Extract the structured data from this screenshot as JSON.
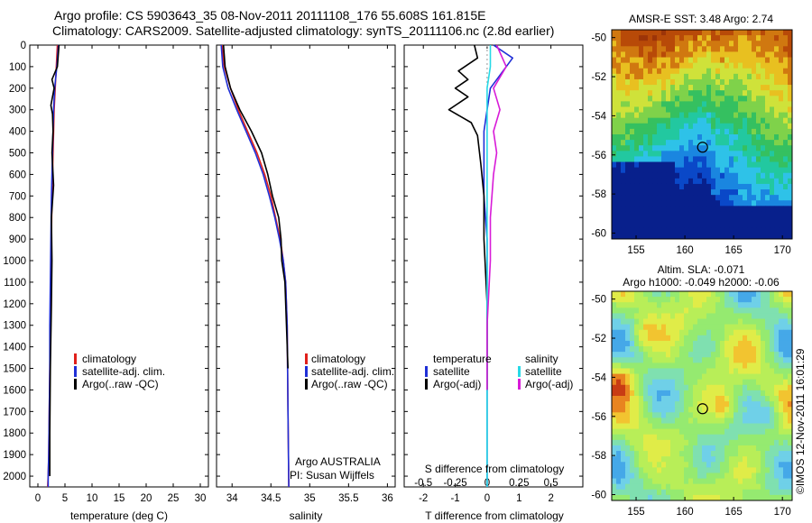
{
  "header": {
    "line1": "Argo profile: CS 5903643_35 08-Nov-2011 20111108_176 55.608S 161.815E",
    "line2": "Climatology: CARS2009. Satellite-adjusted climatology: synTS_20111106.nc (2.8d earlier)"
  },
  "colors": {
    "climatology": "#e0201b",
    "satellite": "#1f2fd6",
    "argo": "#000000",
    "satellite_diff": "#27d9e6",
    "argo_diff": "#d81bd8"
  },
  "chart_data": [
    {
      "type": "line",
      "id": "temperature",
      "xlabel": "temperature (deg C)",
      "ylabel": "",
      "xlim": [
        -1.5,
        31.5
      ],
      "ylim": [
        2050,
        0
      ],
      "xticks": [
        0,
        5,
        10,
        15,
        20,
        25,
        30
      ],
      "yticks": [
        0,
        100,
        200,
        300,
        400,
        500,
        600,
        700,
        800,
        900,
        1000,
        1100,
        1200,
        1300,
        1400,
        1500,
        1600,
        1700,
        1800,
        1900,
        2000
      ],
      "series": [
        {
          "name": "climatology",
          "color": "#e0201b",
          "x": [
            3.6,
            3.4,
            3.2,
            3.0,
            2.9,
            2.8,
            2.6,
            2.5,
            2.4,
            2.3,
            2.2,
            2.1,
            2.0,
            1.9,
            1.8
          ],
          "y": [
            0,
            100,
            200,
            300,
            400,
            500,
            700,
            900,
            1100,
            1300,
            1500,
            1700,
            1900,
            2000,
            2050
          ]
        },
        {
          "name": "satellite-adj. clim.",
          "color": "#1f2fd6",
          "x": [
            3.8,
            3.5,
            3.1,
            2.9,
            2.8,
            2.7,
            2.5,
            2.4,
            2.3,
            2.2,
            2.2,
            2.1,
            2.0,
            1.9,
            1.9
          ],
          "y": [
            0,
            100,
            200,
            300,
            400,
            500,
            700,
            900,
            1100,
            1300,
            1500,
            1700,
            1900,
            2000,
            2050
          ]
        },
        {
          "name": "Argo(..raw -QC)",
          "color": "#000000",
          "x": [
            3.9,
            3.6,
            2.6,
            3.0,
            2.4,
            2.7,
            2.8,
            2.6,
            2.9,
            2.5,
            2.6,
            2.5,
            2.3,
            2.2,
            2.2
          ],
          "y": [
            0,
            100,
            160,
            200,
            280,
            320,
            400,
            500,
            650,
            800,
            1000,
            1200,
            1500,
            1800,
            2000
          ]
        }
      ],
      "legend": [
        "climatology",
        "satellite-adj. clim.",
        "Argo(..raw -QC)"
      ]
    },
    {
      "type": "line",
      "id": "salinity",
      "xlabel": "salinity",
      "ylabel": "",
      "xlim": [
        33.8,
        36.1
      ],
      "ylim": [
        2050,
        0
      ],
      "xticks": [
        34,
        34.5,
        35,
        35.5,
        36
      ],
      "series": [
        {
          "name": "climatology",
          "color": "#e0201b",
          "x": [
            33.87,
            33.9,
            33.98,
            34.08,
            34.2,
            34.32,
            34.42,
            34.5,
            34.56,
            34.62,
            34.66,
            34.69,
            34.71,
            34.72,
            34.73
          ],
          "y": [
            0,
            100,
            200,
            300,
            400,
            500,
            600,
            700,
            800,
            900,
            1000,
            1100,
            1300,
            1700,
            2050
          ]
        },
        {
          "name": "satellite-adj. clim.",
          "color": "#1f2fd6",
          "x": [
            33.86,
            33.88,
            33.95,
            34.06,
            34.18,
            34.3,
            34.4,
            34.48,
            34.55,
            34.61,
            34.66,
            34.69,
            34.71,
            34.72,
            34.73
          ],
          "y": [
            0,
            100,
            200,
            300,
            400,
            500,
            600,
            700,
            800,
            900,
            1000,
            1100,
            1300,
            1700,
            2050
          ]
        },
        {
          "name": "Argo(..raw -QC)",
          "color": "#000000",
          "x": [
            33.89,
            33.91,
            33.98,
            34.1,
            34.25,
            34.38,
            34.46,
            34.52,
            34.6,
            34.63,
            34.64,
            34.68,
            34.7,
            34.72
          ],
          "y": [
            0,
            100,
            200,
            300,
            400,
            500,
            600,
            700,
            800,
            900,
            1000,
            1100,
            1300,
            1500
          ]
        }
      ],
      "legend": [
        "climatology",
        "satellite-adj. clim.",
        "Argo(..raw -QC)"
      ],
      "annotation_line1": "Argo AUSTRALIA",
      "annotation_line2": "PI: Susan Wijffels"
    },
    {
      "type": "line",
      "id": "difference",
      "xlabel_bottom": "T difference from climatology",
      "xlabel_top": "S difference from climatology",
      "xlim": [
        -2.6,
        3.0
      ],
      "ylim": [
        2050,
        0
      ],
      "xticks_bottom": [
        -2,
        -1,
        0,
        1,
        2
      ],
      "xticks_top_labels": [
        "-0.5",
        "-0.25",
        "0",
        "0.25",
        "0.5"
      ],
      "xticks_top_T": [
        -2,
        -1,
        0,
        1,
        2
      ],
      "series": [
        {
          "name": "temperature satellite",
          "color": "#1f2fd6",
          "x": [
            0.2,
            0.8,
            0.5,
            0.1,
            0.0,
            -0.1,
            -0.1,
            -0.1,
            0.0,
            0.0,
            0.0,
            0.0,
            0.0,
            0.0
          ],
          "y": [
            0,
            60,
            120,
            200,
            300,
            400,
            500,
            700,
            900,
            1100,
            1300,
            1500,
            1800,
            2050
          ]
        },
        {
          "name": "temperature Argo(-adj)",
          "color": "#000000",
          "x": [
            -0.4,
            -0.3,
            -0.9,
            -0.6,
            -1.0,
            -0.6,
            -1.2,
            -0.5,
            -0.3,
            -0.2,
            -0.1,
            -0.1,
            0.0,
            0.0
          ],
          "y": [
            0,
            60,
            120,
            160,
            200,
            240,
            300,
            360,
            420,
            550,
            700,
            900,
            1200,
            1600
          ]
        },
        {
          "name": "salinity satellite",
          "color": "#27d9e6",
          "x": [
            0.1,
            0.1,
            0.0,
            0.0,
            0.0,
            0.0,
            0.0,
            0.0,
            0.0,
            0.0,
            0.0,
            0.0
          ],
          "y": [
            0,
            100,
            200,
            300,
            400,
            600,
            800,
            1000,
            1200,
            1500,
            1800,
            2050
          ]
        },
        {
          "name": "salinity Argo(-adj)",
          "color": "#d81bd8",
          "x": [
            0.3,
            0.6,
            0.2,
            0.4,
            0.2,
            0.3,
            0.2,
            0.1,
            0.1,
            0.0,
            0.0
          ],
          "y": [
            0,
            100,
            200,
            300,
            400,
            500,
            600,
            800,
            1000,
            1300,
            1600
          ]
        }
      ],
      "legend_temperature_title": "temperature",
      "legend_salinity_title": "salinity",
      "legend_labels": [
        "satellite",
        "Argo(-adj)"
      ]
    },
    {
      "type": "heatmap",
      "id": "sst_map",
      "title": "AMSR-E SST: 3.48 Argo: 2.74",
      "xlim": [
        152.5,
        171
      ],
      "ylim": [
        -60.3,
        -49.6
      ],
      "xticks": [
        155,
        160,
        165,
        170
      ],
      "yticks": [
        -50,
        -52,
        -54,
        -56,
        -58,
        -60
      ],
      "marker": {
        "lon": 161.815,
        "lat": -55.608
      }
    },
    {
      "type": "heatmap",
      "id": "sla_map",
      "title_line1": "Altim. SLA: -0.071",
      "title_line2": "Argo h1000: -0.049 h2000: -0.06",
      "xlim": [
        152.5,
        171
      ],
      "ylim": [
        -60.3,
        -49.6
      ],
      "xticks": [
        155,
        160,
        165,
        170
      ],
      "yticks": [
        -50,
        -52,
        -54,
        -56,
        -58,
        -60
      ],
      "marker": {
        "lon": 161.815,
        "lat": -55.608
      }
    }
  ],
  "watermark": "©IMOS 12-Nov-2011 16:01:29"
}
